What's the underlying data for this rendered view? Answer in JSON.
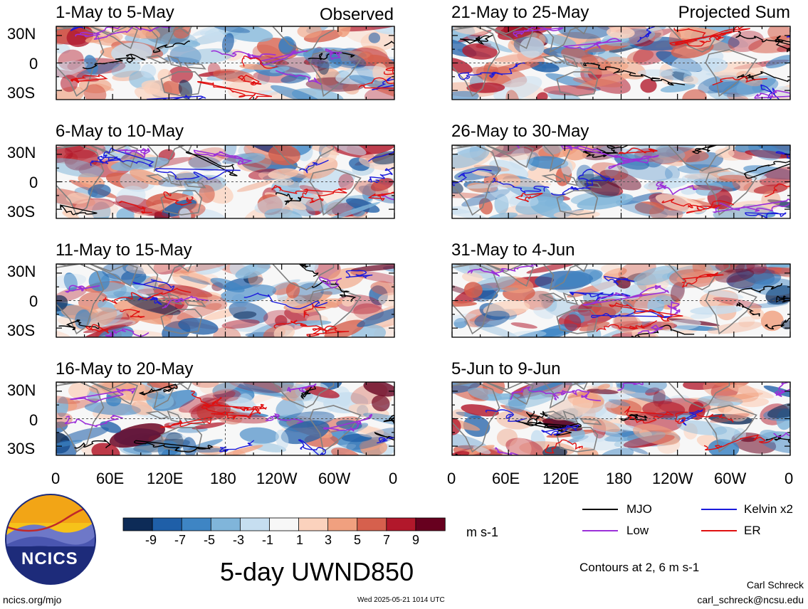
{
  "panels": [
    {
      "title": "1-May to 5-May",
      "corner": "Observed"
    },
    {
      "title": "6-May to 10-May",
      "corner": ""
    },
    {
      "title": "11-May to 15-May",
      "corner": ""
    },
    {
      "title": "16-May to 20-May",
      "corner": ""
    },
    {
      "title": "21-May to 25-May",
      "corner": "Projected Sum"
    },
    {
      "title": "26-May to 30-May",
      "corner": ""
    },
    {
      "title": "31-May to 4-Jun",
      "corner": ""
    },
    {
      "title": "5-Jun to 9-Jun",
      "corner": ""
    }
  ],
  "lat_labels": [
    "30N",
    "0",
    "30S"
  ],
  "lon_labels": [
    "0",
    "60E",
    "120E",
    "180",
    "120W",
    "60W",
    "0"
  ],
  "colorbar": {
    "labels": [
      "-9",
      "-7",
      "-5",
      "-3",
      "-1",
      "1",
      "3",
      "5",
      "7",
      "9"
    ],
    "units": "m s-1",
    "colors": [
      "#0d2b57",
      "#1f5fa8",
      "#3e85c4",
      "#80b5da",
      "#c6def0",
      "#f7f7f7",
      "#fbd2bd",
      "#f0a07f",
      "#d6604d",
      "#b2182b",
      "#67001f"
    ]
  },
  "legend": {
    "items": [
      {
        "label": "MJO",
        "color": "#000000"
      },
      {
        "label": "Kelvin x2",
        "color": "#1a1adc"
      },
      {
        "label": "Low",
        "color": "#9b30d9"
      },
      {
        "label": "ER",
        "color": "#e01010"
      }
    ],
    "note": "Contours at 2, 6 m s-1"
  },
  "main_title": "5-day UWND850",
  "logo_text": "NCICS",
  "site": "ncics.org/mjo",
  "timestamp": "Wed 2025-05-21 1014 UTC",
  "author": "Carl Schreck",
  "email": "carl_schreck@ncsu.edu"
}
